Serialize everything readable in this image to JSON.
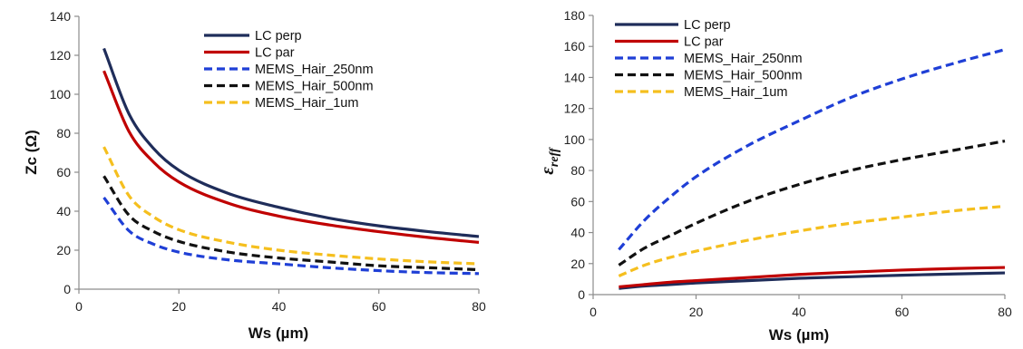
{
  "chart_data": [
    {
      "type": "line",
      "xlabel": "Ws (µm)",
      "ylabel": "Zc (Ω)",
      "xlim": [
        0,
        80
      ],
      "ylim": [
        0,
        140
      ],
      "xticks": [
        0,
        20,
        40,
        60,
        80
      ],
      "yticks": [
        0,
        20,
        40,
        60,
        80,
        100,
        120,
        140
      ],
      "legend_position": "top-center",
      "grid": false,
      "x": [
        5,
        10,
        15,
        20,
        30,
        40,
        50,
        60,
        70,
        80
      ],
      "series": [
        {
          "name": "LC perp",
          "color": "#1f2d5a",
          "dash": "solid",
          "values": [
            123.5,
            90,
            72,
            61,
            49,
            42,
            36.5,
            32.5,
            29.5,
            27
          ]
        },
        {
          "name": "LC par",
          "color": "#c00000",
          "dash": "solid",
          "values": [
            112,
            81,
            65,
            55,
            44,
            37.5,
            33,
            29.5,
            26.5,
            24
          ]
        },
        {
          "name": "MEMS_Hair_250nm",
          "color": "#1f3fd6",
          "dash": "dashed",
          "values": [
            47,
            30,
            23,
            19,
            15,
            13,
            11,
            9.5,
            8.5,
            8
          ]
        },
        {
          "name": "MEMS_Hair_500nm",
          "color": "#111111",
          "dash": "dashed",
          "values": [
            58,
            38,
            29.5,
            24.5,
            19,
            16,
            14,
            12,
            11,
            10
          ]
        },
        {
          "name": "MEMS_Hair_1um",
          "color": "#f5bf1e",
          "dash": "dashed",
          "values": [
            73,
            48,
            37,
            30.5,
            24,
            20,
            17.5,
            15.5,
            14,
            13
          ]
        }
      ]
    },
    {
      "type": "line",
      "xlabel": "Ws (µm)",
      "ylabel": "ε",
      "ylabel_sub": "reff",
      "xlim": [
        0,
        80
      ],
      "ylim": [
        0,
        180
      ],
      "xticks": [
        0,
        20,
        40,
        60,
        80
      ],
      "yticks": [
        0,
        20,
        40,
        60,
        80,
        100,
        120,
        140,
        160,
        180
      ],
      "legend_position": "top-left",
      "grid": false,
      "x": [
        5,
        10,
        15,
        20,
        30,
        40,
        50,
        60,
        70,
        80
      ],
      "series": [
        {
          "name": "LC perp",
          "color": "#1f2d5a",
          "dash": "solid",
          "values": [
            4,
            5.5,
            6.5,
            7.5,
            9,
            10.5,
            11.5,
            12.5,
            13.3,
            14
          ]
        },
        {
          "name": "LC par",
          "color": "#c00000",
          "dash": "solid",
          "values": [
            5,
            6.5,
            8,
            9,
            11,
            13,
            14.5,
            15.8,
            16.8,
            17.5
          ]
        },
        {
          "name": "MEMS_Hair_250nm",
          "color": "#1f3fd6",
          "dash": "dashed",
          "values": [
            29,
            48,
            63,
            76,
            96,
            112,
            127,
            139,
            149,
            158
          ]
        },
        {
          "name": "MEMS_Hair_500nm",
          "color": "#111111",
          "dash": "dashed",
          "values": [
            19,
            30,
            38,
            46,
            60,
            71,
            80,
            87,
            93,
            99
          ]
        },
        {
          "name": "MEMS_Hair_1um",
          "color": "#f5bf1e",
          "dash": "dashed",
          "values": [
            12,
            19,
            24,
            28,
            35,
            41,
            46,
            50,
            54,
            57
          ]
        }
      ]
    }
  ]
}
